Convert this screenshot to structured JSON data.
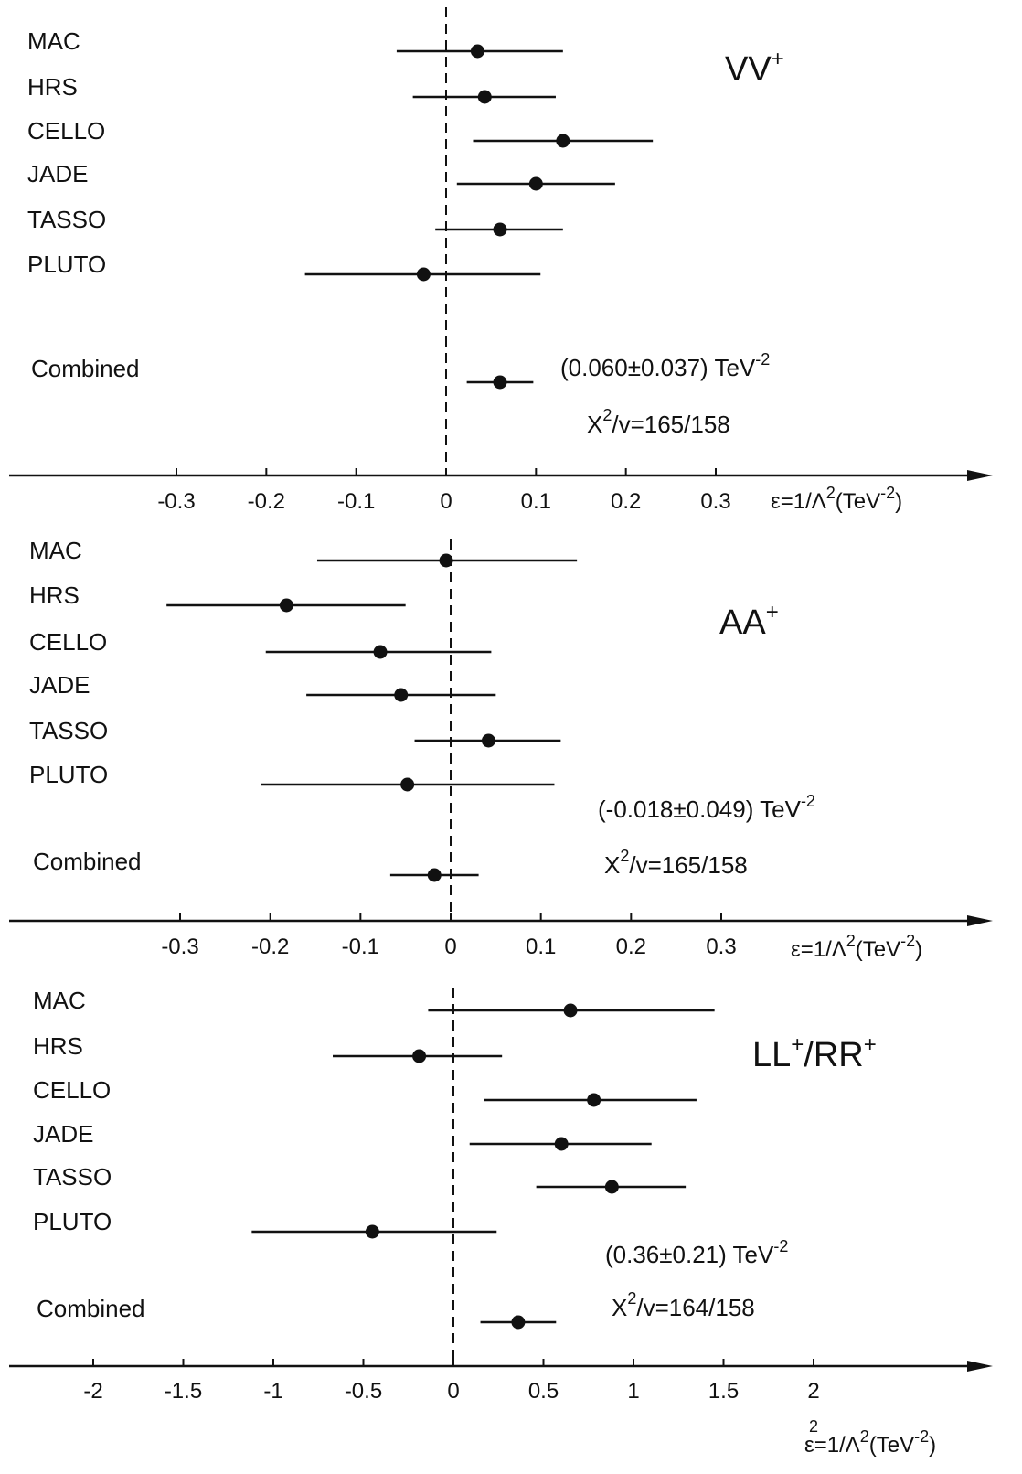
{
  "chart_data": [
    {
      "type": "scatter",
      "panel_label": "VV",
      "panel_label_sup": "+",
      "axis_label": "ε=1/Λ",
      "axis_label_exp": "2",
      "axis_label_unit_open": "(TeV",
      "axis_label_unit_exp": "-2",
      "axis_label_unit_close": ")",
      "ticks": [
        "-0.3",
        "-0.2",
        "-0.1",
        "0",
        "0.1",
        "0.2",
        "0.3"
      ],
      "tick_values": [
        -0.3,
        -0.2,
        -0.1,
        0,
        0.1,
        0.2,
        0.3
      ],
      "xlim": [
        -0.48,
        0.6
      ],
      "experiments": [
        {
          "name": "MAC",
          "value": 0.035,
          "low": -0.055,
          "high": 0.13
        },
        {
          "name": "HRS",
          "value": 0.043,
          "low": -0.037,
          "high": 0.122
        },
        {
          "name": "CELLO",
          "value": 0.13,
          "low": 0.03,
          "high": 0.23
        },
        {
          "name": "JADE",
          "value": 0.1,
          "low": 0.012,
          "high": 0.188
        },
        {
          "name": "TASSO",
          "value": 0.06,
          "low": -0.012,
          "high": 0.13
        },
        {
          "name": "PLUTO",
          "value": -0.025,
          "low": -0.157,
          "high": 0.105
        }
      ],
      "combined": {
        "name": "Combined",
        "value": 0.06,
        "low": 0.023,
        "high": 0.097
      },
      "result_text": "(0.060±0.037) TeV",
      "result_exp": "-2",
      "chi2_prefix": "X",
      "chi2_exp": "2",
      "chi2_text": "/v=165/158"
    },
    {
      "type": "scatter",
      "panel_label": "AA",
      "panel_label_sup": "+",
      "axis_label": "ε=1/Λ",
      "axis_label_exp": "2",
      "axis_label_unit_open": "(TeV",
      "axis_label_unit_exp": "-2",
      "axis_label_unit_close": ")",
      "ticks": [
        "-0.3",
        "-0.2",
        "-0.1",
        "0",
        "0.1",
        "0.2",
        "0.3"
      ],
      "tick_values": [
        -0.3,
        -0.2,
        -0.1,
        0,
        0.1,
        0.2,
        0.3
      ],
      "xlim": [
        -0.48,
        0.6
      ],
      "experiments": [
        {
          "name": "MAC",
          "value": -0.005,
          "low": -0.148,
          "high": 0.14
        },
        {
          "name": "HRS",
          "value": -0.182,
          "low": -0.315,
          "high": -0.05
        },
        {
          "name": "CELLO",
          "value": -0.078,
          "low": -0.205,
          "high": 0.045
        },
        {
          "name": "JADE",
          "value": -0.055,
          "low": -0.16,
          "high": 0.05
        },
        {
          "name": "TASSO",
          "value": 0.042,
          "low": -0.04,
          "high": 0.122
        },
        {
          "name": "PLUTO",
          "value": -0.048,
          "low": -0.21,
          "high": 0.115
        }
      ],
      "combined": {
        "name": "Combined",
        "value": -0.018,
        "low": -0.067,
        "high": 0.031
      },
      "result_text": "(-0.018±0.049) TeV",
      "result_exp": "-2",
      "chi2_prefix": "X",
      "chi2_exp": "2",
      "chi2_text": "/v=165/158"
    },
    {
      "type": "scatter",
      "panel_label": "LL",
      "panel_label_sup": "+",
      "panel_label_2": "/RR",
      "panel_label_sup_2": "+",
      "axis_label": "ε=1/Λ",
      "axis_label_exp": "2",
      "axis_label_unit_open": "(TeV",
      "axis_label_unit_exp": "-2",
      "axis_label_unit_close": ")",
      "axis_label_extra": "2",
      "ticks": [
        "-2",
        "-1.5",
        "-1",
        "-0.5",
        "0",
        "0.5",
        "1",
        "1.5",
        "2"
      ],
      "tick_values": [
        -2,
        -1.5,
        -1,
        -0.5,
        0,
        0.5,
        1,
        1.5,
        2
      ],
      "xlim": [
        -2.5,
        2.9
      ],
      "experiments": [
        {
          "name": "MAC",
          "value": 0.65,
          "low": -0.14,
          "high": 1.45
        },
        {
          "name": "HRS",
          "value": -0.19,
          "low": -0.67,
          "high": 0.27
        },
        {
          "name": "CELLO",
          "value": 0.78,
          "low": 0.17,
          "high": 1.35
        },
        {
          "name": "JADE",
          "value": 0.6,
          "low": 0.09,
          "high": 1.1
        },
        {
          "name": "TASSO",
          "value": 0.88,
          "low": 0.46,
          "high": 1.29
        },
        {
          "name": "PLUTO",
          "value": -0.45,
          "low": -1.12,
          "high": 0.24
        }
      ],
      "combined": {
        "name": "Combined",
        "value": 0.36,
        "low": 0.15,
        "high": 0.57
      },
      "result_text": "(0.36±0.21) TeV",
      "result_exp": "-2",
      "chi2_prefix": "X",
      "chi2_exp": "2",
      "chi2_text": "/v=164/158"
    }
  ]
}
